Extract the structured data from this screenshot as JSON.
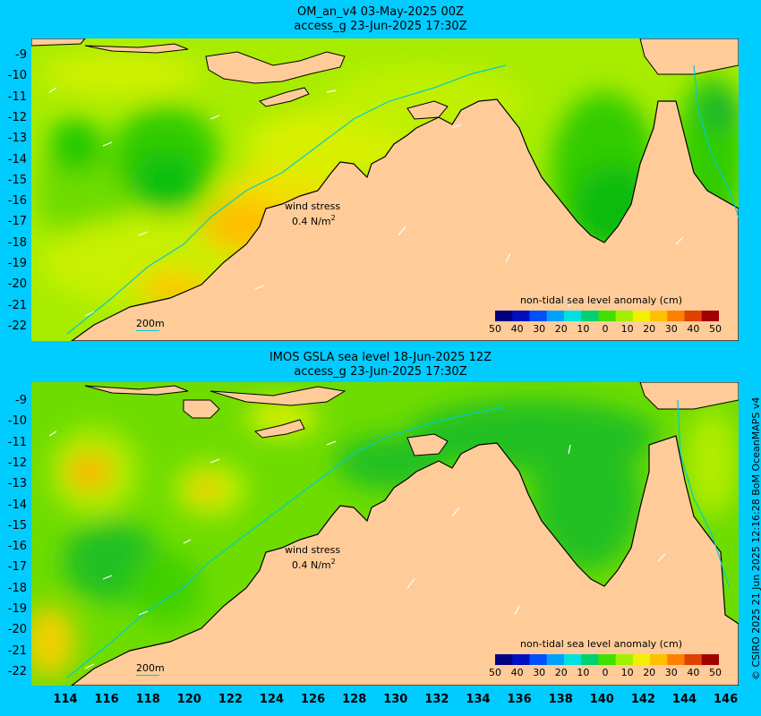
{
  "panels": [
    {
      "title_line1": "OM_an_v4  03-May-2025 00Z",
      "title_line2": "access_g 23-Jun-2025 17:30Z",
      "wind_label": "wind stress",
      "wind_value": "0.4 N/m",
      "wind_sup": "2",
      "scale_label": "200m",
      "colorbar_title": "non-tidal sea level anomaly (cm)"
    },
    {
      "title_line1": "IMOS GSLA sea level  18-Jun-2025 12Z",
      "title_line2": "access_g 23-Jun-2025 17:30Z",
      "wind_label": "wind stress",
      "wind_value": "0.4 N/m",
      "wind_sup": "2",
      "scale_label": "200m",
      "colorbar_title": "non-tidal sea level anomaly (cm)"
    }
  ],
  "y_ticks": [
    "-9",
    "-10",
    "-11",
    "-12",
    "-13",
    "-14",
    "-15",
    "-16",
    "-17",
    "-18",
    "-19",
    "-20",
    "-21",
    "-22"
  ],
  "x_ticks": [
    "114",
    "116",
    "118",
    "120",
    "122",
    "124",
    "126",
    "128",
    "130",
    "132",
    "134",
    "136",
    "138",
    "140",
    "142",
    "144",
    "146"
  ],
  "colorbar_ticks": [
    "50",
    "40",
    "30",
    "20",
    "10",
    "0",
    "10",
    "20",
    "30",
    "40",
    "50"
  ],
  "colorbar_colors": [
    "#000080",
    "#0010c0",
    "#0050ff",
    "#00a0ff",
    "#00e0e0",
    "#00d070",
    "#40e000",
    "#a0f000",
    "#f0f000",
    "#ffc000",
    "#ff8000",
    "#e04000",
    "#a00000"
  ],
  "copyright": "© CSIRO 2025   21 Jun 2025 12:16:28 BoM OceanMAPS v4",
  "colors": {
    "land": "#ffcc99",
    "background": "#00ccff",
    "coastline": "#000000",
    "isobath": "#00cccc"
  }
}
